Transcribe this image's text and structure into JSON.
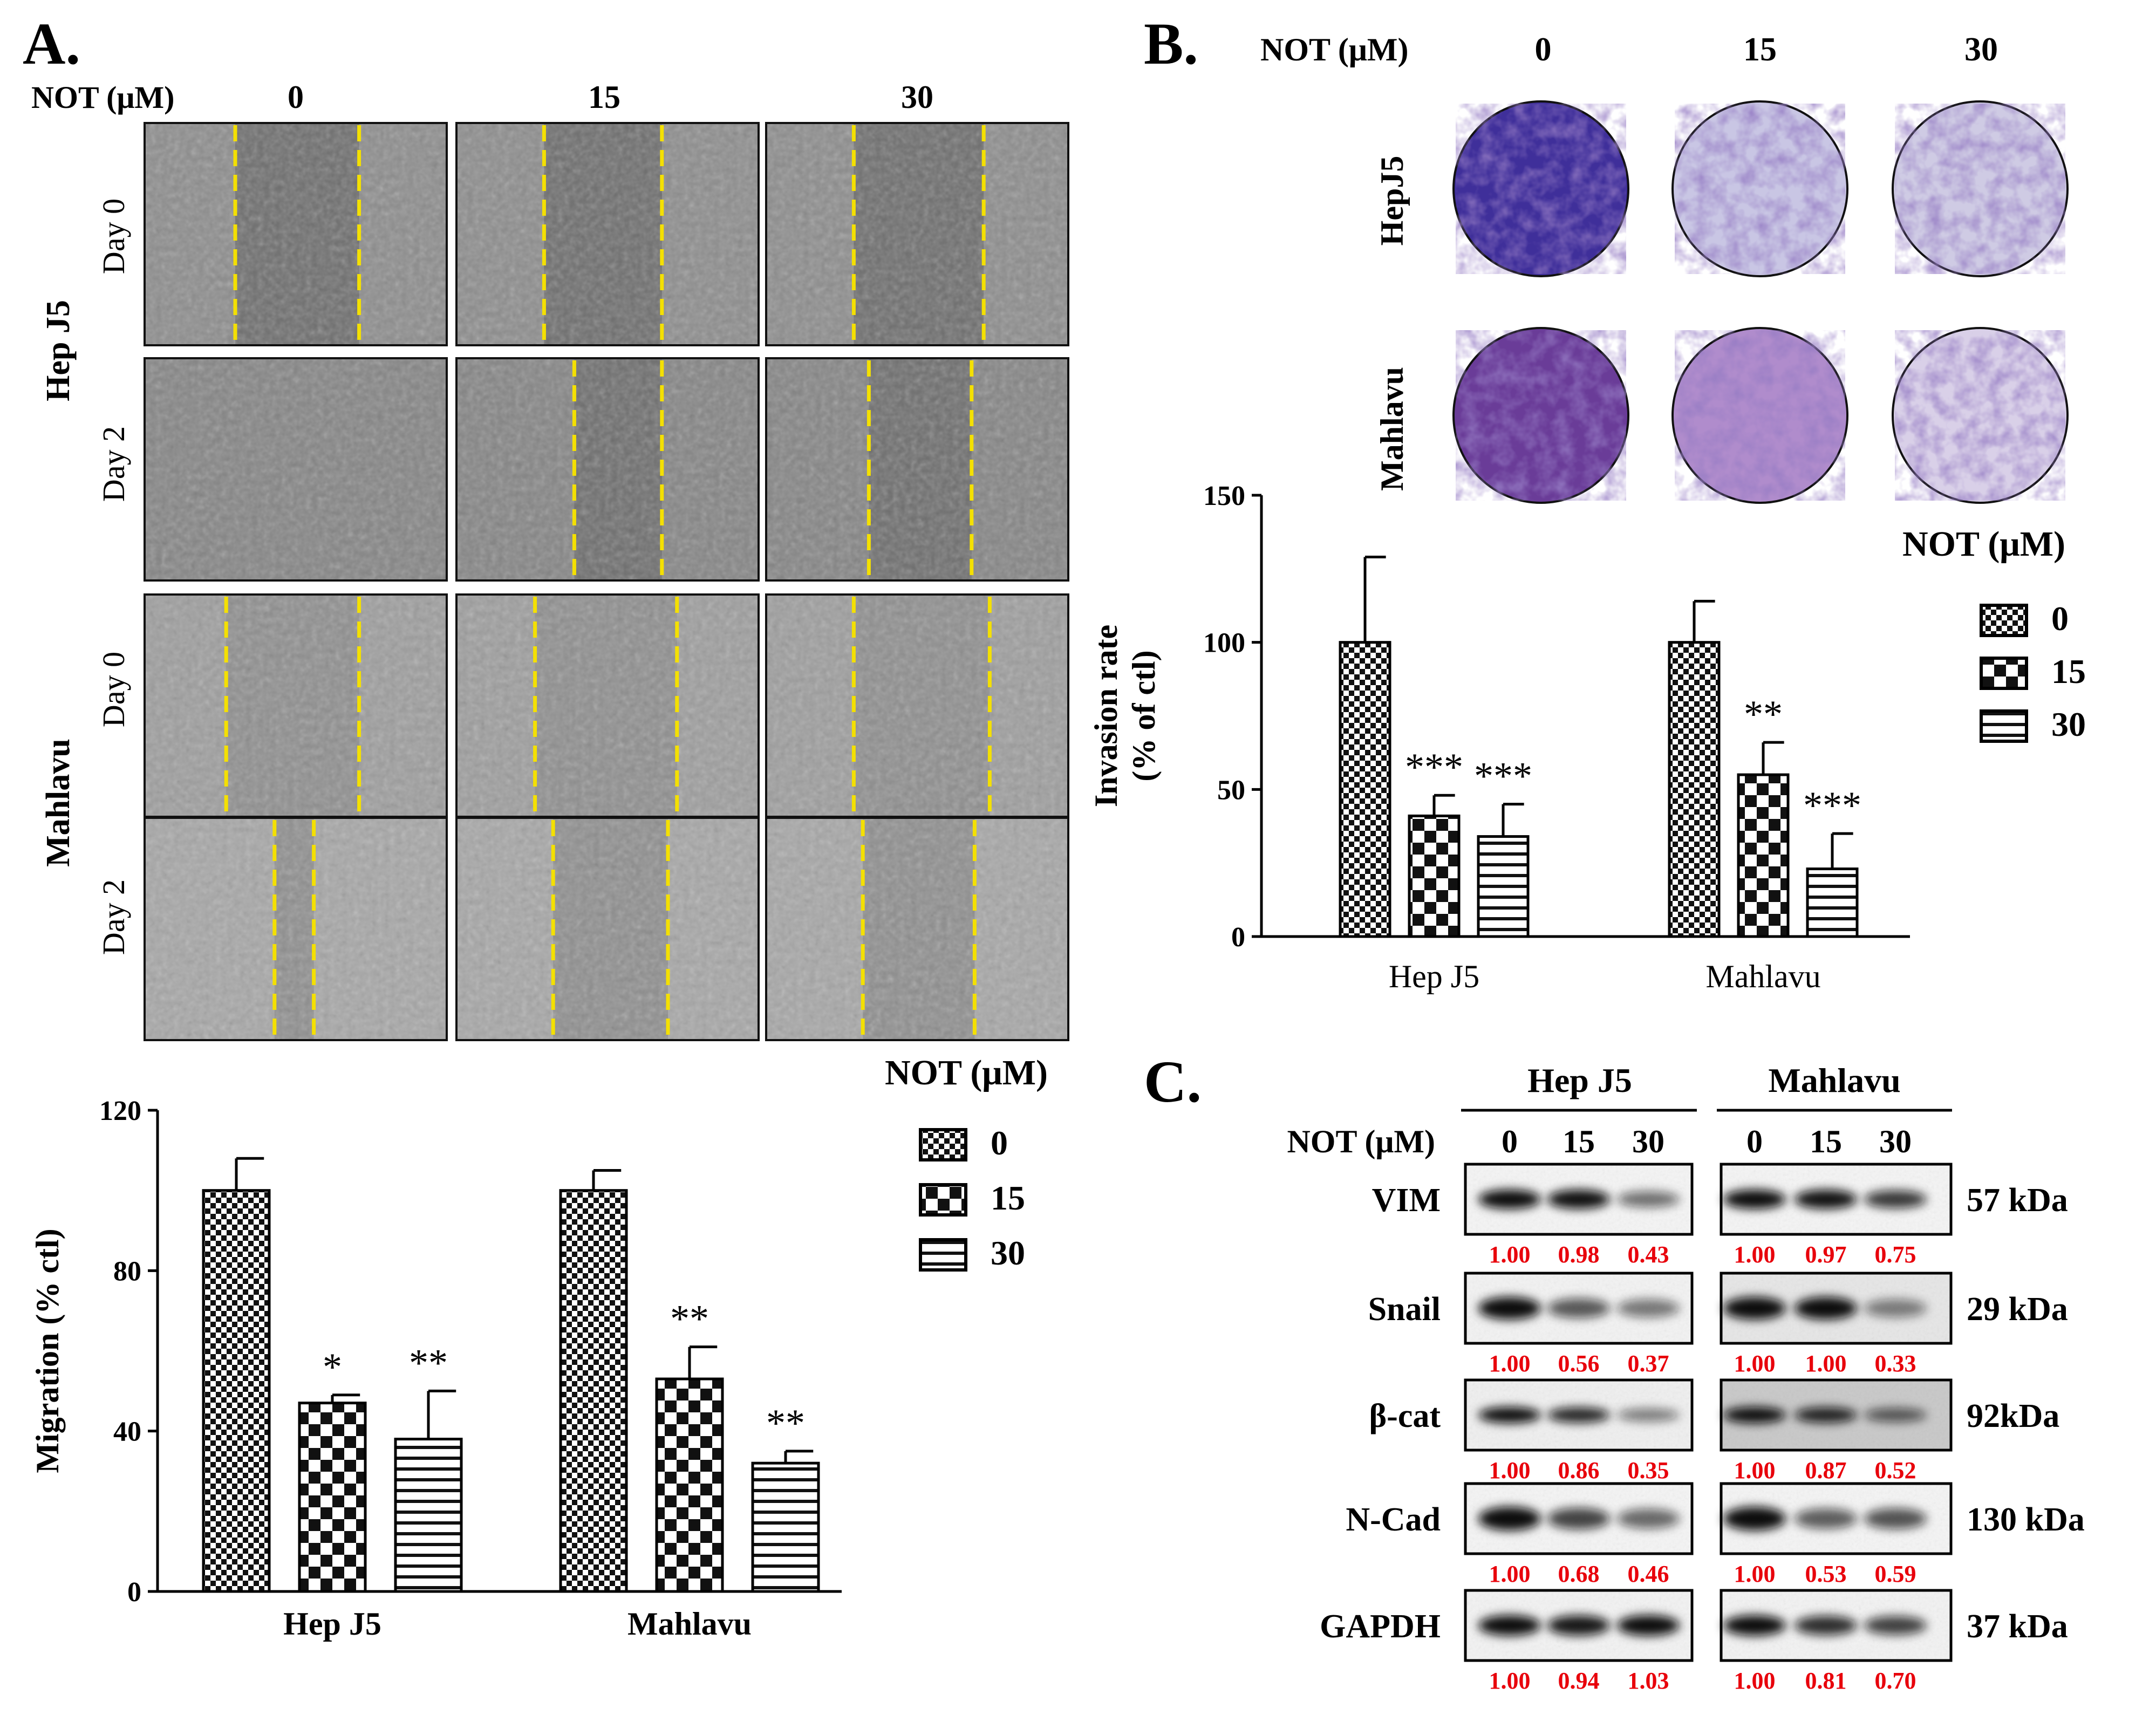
{
  "figure": {
    "panelA": {
      "label": "A.",
      "not_label": "NOT (μM)",
      "doses": [
        "0",
        "15",
        "30"
      ],
      "cell_lines": [
        "Hep J5",
        "Mahlavu"
      ],
      "days": [
        "Day 0",
        "Day 2"
      ]
    },
    "panelB": {
      "label": "B.",
      "not_label": "NOT (μM)",
      "doses": [
        "0",
        "15",
        "30"
      ],
      "cell_lines": [
        "HepJ5",
        "Mahlavu"
      ]
    },
    "panelC": {
      "label": "C.",
      "not_label": "NOT (μM)",
      "groups": [
        "Hep J5",
        "Mahlavu"
      ],
      "doses": [
        "0",
        "15",
        "30"
      ],
      "proteins": [
        {
          "name": "VIM",
          "kda": "57 kDa",
          "hep": [
            "1.00",
            "0.98",
            "0.43"
          ],
          "mah": [
            "1.00",
            "0.97",
            "0.75"
          ]
        },
        {
          "name": "Snail",
          "kda": "29 kDa",
          "hep": [
            "1.00",
            "0.56",
            "0.37"
          ],
          "mah": [
            "1.00",
            "1.00",
            "0.33"
          ]
        },
        {
          "name": "β-cat",
          "kda": "92kDa",
          "hep": [
            "1.00",
            "0.86",
            "0.35"
          ],
          "mah": [
            "1.00",
            "0.87",
            "0.52"
          ]
        },
        {
          "name": "N-Cad",
          "kda": "130 kDa",
          "hep": [
            "1.00",
            "0.68",
            "0.46"
          ],
          "mah": [
            "1.00",
            "0.53",
            "0.59"
          ]
        },
        {
          "name": "GAPDH",
          "kda": "37 kDa",
          "hep": [
            "1.00",
            "0.94",
            "1.03"
          ],
          "mah": [
            "1.00",
            "0.81",
            "0.70"
          ]
        }
      ],
      "value_color": "#e8000b"
    }
  },
  "chart_data": [
    {
      "id": "invasion",
      "type": "bar",
      "ylabel_line1": "Invasion rate",
      "ylabel_line2": "(% of ctl)",
      "categories": [
        "Hep J5",
        "Mahlavu"
      ],
      "ylim": [
        0,
        150
      ],
      "yticks": [
        "0",
        "50",
        "100",
        "150"
      ],
      "legend_title": "NOT (μM)",
      "series": [
        {
          "name": "0",
          "pattern": "small-check",
          "values": [
            100,
            100
          ],
          "errors": [
            29,
            14
          ],
          "sig": [
            "",
            ""
          ]
        },
        {
          "name": "15",
          "pattern": "big-check",
          "values": [
            41,
            55
          ],
          "errors": [
            7,
            11
          ],
          "sig": [
            "***",
            "**"
          ]
        },
        {
          "name": "30",
          "pattern": "hstripe",
          "values": [
            34,
            23
          ],
          "errors": [
            11,
            12
          ],
          "sig": [
            "***",
            "***"
          ]
        }
      ]
    },
    {
      "id": "migration",
      "type": "bar",
      "ylabel": "Migration (% ctl)",
      "categories": [
        "Hep J5",
        "Mahlavu"
      ],
      "ylim": [
        0,
        120
      ],
      "yticks": [
        "0",
        "40",
        "80",
        "120"
      ],
      "legend_title": "NOT (μM)",
      "series": [
        {
          "name": "0",
          "pattern": "small-check",
          "values": [
            100,
            100
          ],
          "errors": [
            8,
            5
          ],
          "sig": [
            "",
            ""
          ]
        },
        {
          "name": "15",
          "pattern": "big-check",
          "values": [
            47,
            53
          ],
          "errors": [
            2,
            8
          ],
          "sig": [
            "*",
            "**"
          ]
        },
        {
          "name": "30",
          "pattern": "hstripe",
          "values": [
            38,
            32
          ],
          "errors": [
            12,
            3
          ],
          "sig": [
            "**",
            "**"
          ]
        }
      ]
    }
  ]
}
